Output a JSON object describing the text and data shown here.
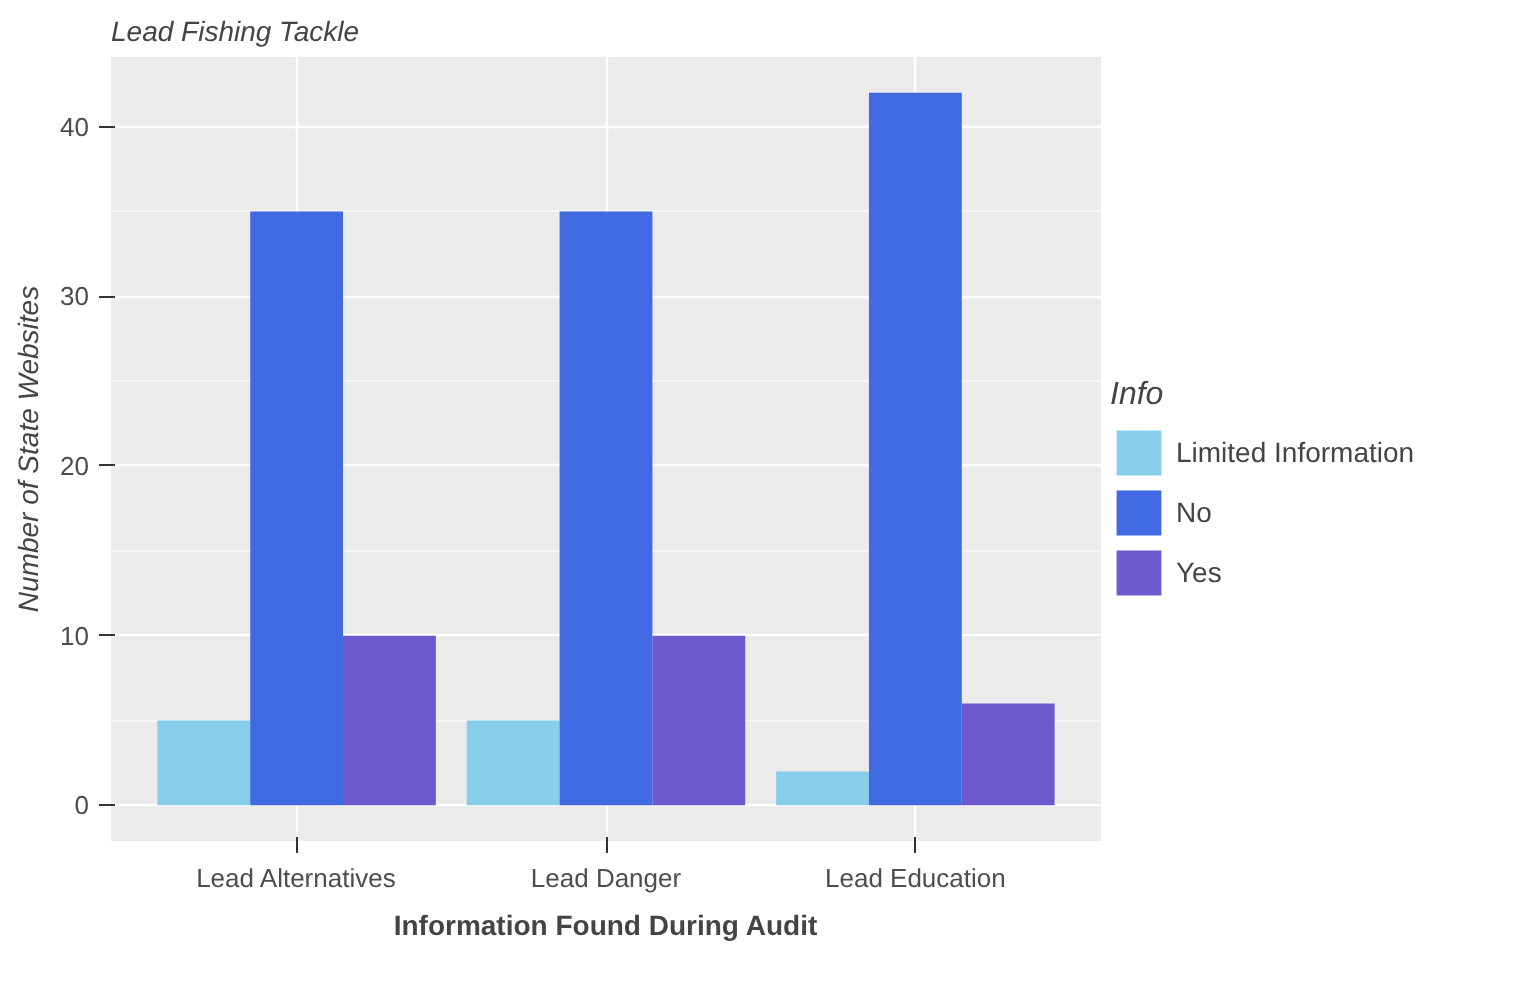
{
  "chart_data": {
    "type": "bar",
    "title": "Lead Fishing Tackle",
    "xlabel": "Information Found During Audit",
    "ylabel": "Number of State Websites",
    "legend_title": "Info",
    "categories": [
      "Lead Alternatives",
      "Lead Danger",
      "Lead Education"
    ],
    "series": [
      {
        "name": "Limited Information",
        "color": "#87ceeb",
        "values": [
          5,
          5,
          2
        ]
      },
      {
        "name": "No",
        "color": "#4169e1",
        "values": [
          35,
          35,
          42
        ]
      },
      {
        "name": "Yes",
        "color": "#6a5acd",
        "values": [
          10,
          10,
          6
        ]
      }
    ],
    "ylim": [
      -2.1,
      44.1
    ],
    "yticks": [
      0,
      10,
      20,
      30,
      40
    ],
    "grid": true,
    "legend": "right"
  }
}
